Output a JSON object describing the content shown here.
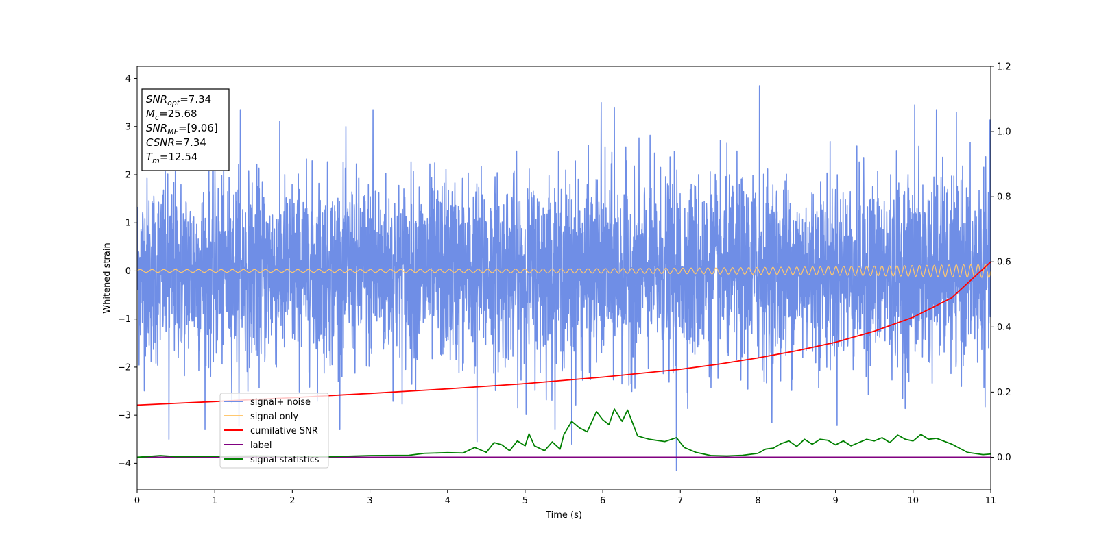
{
  "chart_data": {
    "type": "line",
    "title": "",
    "xlabel": "Time (s)",
    "ylabel": "Whitened strain",
    "xlim": [
      0,
      11
    ],
    "ylim": [
      -4.55,
      4.25
    ],
    "y2lim": [
      -0.1,
      1.2
    ],
    "x_ticks": [
      "0",
      "1",
      "2",
      "3",
      "4",
      "5",
      "6",
      "7",
      "8",
      "9",
      "10",
      "11"
    ],
    "y_ticks": [
      "4",
      "3",
      "2",
      "1",
      "0",
      "−1",
      "−2",
      "−3",
      "−4"
    ],
    "y2_ticks": [
      "1.2",
      "1.0",
      "0.8",
      "0.6",
      "0.4",
      "0.2",
      "0.0"
    ],
    "grid": false,
    "legend_position": "lower-left",
    "info_box": [
      {
        "base": "SNR",
        "sub": "opt",
        "value": "=7.34"
      },
      {
        "base": "M",
        "sub": "c",
        "value": "=25.68"
      },
      {
        "base": "SNR",
        "sub": "MF",
        "value": "=[9.06]"
      },
      {
        "base": "CSNR",
        "sub": "",
        "value": "=7.34"
      },
      {
        "base": "T",
        "sub": "m",
        "value": "=12.54"
      }
    ],
    "series": [
      {
        "name": "signal+ noise",
        "color": "#6f8ee6",
        "axis": "left",
        "kind": "noise",
        "noise_std": 0.95,
        "peak_values": [
          [
            0.41,
            -3.5
          ],
          [
            1.33,
            3.35
          ],
          [
            3.04,
            3.35
          ],
          [
            4.38,
            -3.55
          ],
          [
            5.6,
            -3.6
          ],
          [
            5.98,
            3.5
          ],
          [
            6.15,
            3.4
          ],
          [
            6.95,
            -4.15
          ],
          [
            8.02,
            3.85
          ],
          [
            10.02,
            3.45
          ],
          [
            10.3,
            3.35
          ]
        ]
      },
      {
        "name": "signal only",
        "color": "#ffc870",
        "axis": "left",
        "kind": "chirp",
        "amplitude_start": 0.03,
        "amplitude_end": 0.14,
        "cycles": 95
      },
      {
        "name": "cumilative SNR",
        "color": "#ff0000",
        "axis": "right",
        "x": [
          0,
          1,
          2,
          3,
          4,
          5,
          6,
          7,
          7.5,
          8,
          8.5,
          9,
          9.5,
          10,
          10.5,
          11
        ],
        "values": [
          0.16,
          0.171,
          0.183,
          0.196,
          0.21,
          0.226,
          0.246,
          0.27,
          0.286,
          0.305,
          0.327,
          0.353,
          0.387,
          0.43,
          0.49,
          0.6
        ]
      },
      {
        "name": "label",
        "color": "#800080",
        "axis": "right",
        "x": [
          0,
          11
        ],
        "values": [
          0,
          0
        ]
      },
      {
        "name": "signal statistics",
        "color": "#008000",
        "axis": "right",
        "x": [
          0,
          0.3,
          0.5,
          1,
          1.5,
          2,
          2.5,
          3,
          3.5,
          3.7,
          4.0,
          4.2,
          4.35,
          4.5,
          4.6,
          4.7,
          4.8,
          4.9,
          5.0,
          5.05,
          5.12,
          5.25,
          5.35,
          5.45,
          5.5,
          5.6,
          5.7,
          5.8,
          5.92,
          6.0,
          6.08,
          6.15,
          6.25,
          6.32,
          6.45,
          6.6,
          6.8,
          6.95,
          7.05,
          7.2,
          7.4,
          7.6,
          7.8,
          8.0,
          8.1,
          8.2,
          8.3,
          8.4,
          8.5,
          8.6,
          8.7,
          8.8,
          8.9,
          9.0,
          9.1,
          9.2,
          9.4,
          9.5,
          9.6,
          9.7,
          9.8,
          9.9,
          10.0,
          10.1,
          10.2,
          10.3,
          10.5,
          10.7,
          10.9,
          11.0
        ],
        "values": [
          0.0,
          0.005,
          0.002,
          0.003,
          0.004,
          0.003,
          0.002,
          0.005,
          0.006,
          0.012,
          0.014,
          0.013,
          0.03,
          0.015,
          0.045,
          0.038,
          0.02,
          0.05,
          0.035,
          0.072,
          0.035,
          0.02,
          0.047,
          0.025,
          0.07,
          0.11,
          0.09,
          0.078,
          0.14,
          0.115,
          0.1,
          0.148,
          0.11,
          0.145,
          0.065,
          0.055,
          0.048,
          0.06,
          0.03,
          0.015,
          0.005,
          0.004,
          0.006,
          0.012,
          0.025,
          0.028,
          0.042,
          0.05,
          0.033,
          0.055,
          0.04,
          0.055,
          0.052,
          0.038,
          0.05,
          0.035,
          0.055,
          0.05,
          0.06,
          0.045,
          0.068,
          0.055,
          0.05,
          0.07,
          0.055,
          0.058,
          0.04,
          0.015,
          0.008,
          0.01
        ]
      }
    ]
  }
}
